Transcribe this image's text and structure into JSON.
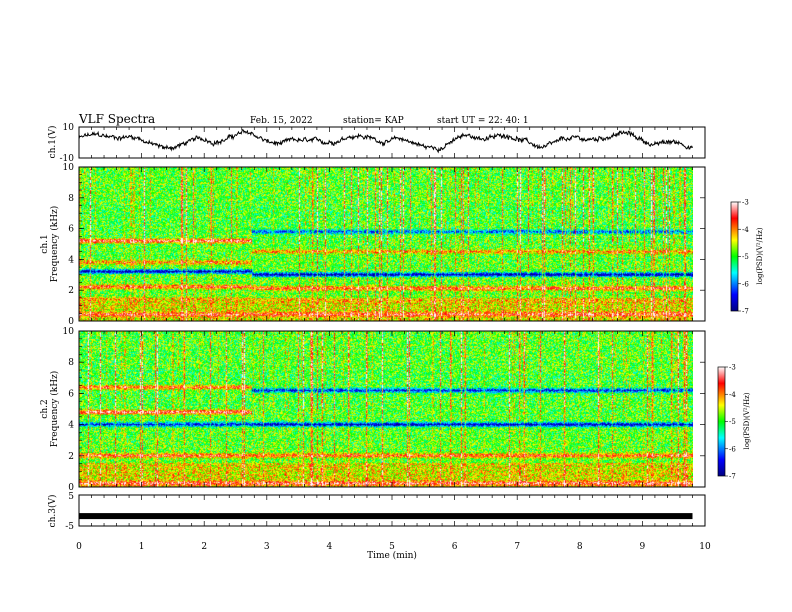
{
  "header": {
    "title": "VLF Spectra",
    "date": "Feb. 15, 2022",
    "station": "station= KAP",
    "start": "start  UT  =   22: 40: 1"
  },
  "chart_data": [
    {
      "type": "line",
      "name": "waveform-ch1",
      "ylabel": "ch.1(V)",
      "xlim": [
        0,
        10
      ],
      "ylim": [
        -10,
        10
      ],
      "yticks": [
        "10",
        "-10"
      ],
      "note_estimated_band": [
        -4,
        6
      ]
    },
    {
      "type": "heatmap",
      "name": "spectrogram-ch1",
      "ylabel_channel": "ch.1",
      "ylabel": "Frequency (kHz)",
      "xlim": [
        0,
        10
      ],
      "ylim": [
        0,
        10
      ],
      "yticks": [
        "0",
        "2",
        "4",
        "6",
        "8",
        "10"
      ],
      "colorbar": {
        "label": "log(PSD)(V²/Hz)",
        "range": [
          -7,
          -3
        ],
        "ticks": [
          "-3",
          "-4",
          "-5",
          "-6",
          "-7"
        ]
      },
      "transition_time_min": 2.75,
      "bands_before": [
        {
          "f": 5.2,
          "level": -3.3
        },
        {
          "f": 3.8,
          "level": -3.9
        },
        {
          "f": 3.2,
          "level": -6.8
        },
        {
          "f": 2.2,
          "level": -3.6
        },
        {
          "f": 1.4,
          "level": -4.2
        },
        {
          "f": 0.4,
          "level": -3.5
        }
      ],
      "bands_after": [
        {
          "f": 5.8,
          "level": -6.2
        },
        {
          "f": 4.5,
          "level": -4.0
        },
        {
          "f": 3.0,
          "level": -6.9
        },
        {
          "f": 2.1,
          "level": -3.6
        },
        {
          "f": 1.3,
          "level": -4.2
        },
        {
          "f": 0.4,
          "level": -3.5
        }
      ]
    },
    {
      "type": "heatmap",
      "name": "spectrogram-ch2",
      "ylabel_channel": "ch.2",
      "ylabel": "Frequency (kHz)",
      "xlim": [
        0,
        10
      ],
      "ylim": [
        0,
        10
      ],
      "yticks": [
        "0",
        "2",
        "4",
        "6",
        "8",
        "10"
      ],
      "colorbar": {
        "label": "log(PSD)(V²/Hz)",
        "range": [
          -7,
          -3
        ],
        "ticks": [
          "-3",
          "-4",
          "-5",
          "-6",
          "-7"
        ]
      },
      "transition_time_min": 2.75,
      "bands_before": [
        {
          "f": 6.4,
          "level": -3.6
        },
        {
          "f": 4.8,
          "level": -3.2
        },
        {
          "f": 4.0,
          "level": -6.5
        },
        {
          "f": 2.0,
          "level": -3.6
        },
        {
          "f": 0.2,
          "level": -3.4
        }
      ],
      "bands_after": [
        {
          "f": 6.2,
          "level": -6.5
        },
        {
          "f": 4.0,
          "level": -6.8
        },
        {
          "f": 2.0,
          "level": -3.7
        },
        {
          "f": 0.2,
          "level": -3.4
        }
      ]
    },
    {
      "type": "line",
      "name": "waveform-ch3",
      "ylabel": "ch.3(V)",
      "xlim": [
        0,
        10
      ],
      "ylim": [
        -5,
        5
      ],
      "yticks": [
        "5",
        "-5"
      ],
      "constant_value": -1.8
    }
  ],
  "xaxis": {
    "label": "Time  (min)",
    "ticks": [
      "0",
      "1",
      "2",
      "3",
      "4",
      "5",
      "6",
      "7",
      "8",
      "9",
      "10"
    ],
    "data_end_min": 9.8
  }
}
